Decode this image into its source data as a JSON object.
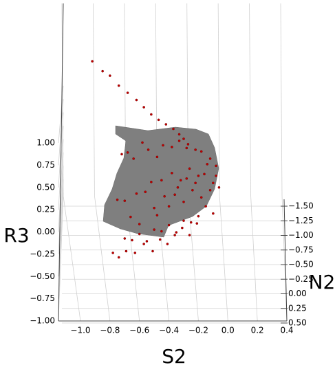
{
  "chart_data": {
    "type": "scatter3d",
    "xlabel": "S2",
    "ylabel": "N2",
    "zlabel": "R3",
    "xlim": [
      -1.0,
      0.4
    ],
    "xticks": [
      {
        "value": -1.0,
        "label": "−1.0"
      },
      {
        "value": -0.8,
        "label": "−0.8"
      },
      {
        "value": -0.6,
        "label": "−0.6"
      },
      {
        "value": -0.4,
        "label": "−0.4"
      },
      {
        "value": -0.2,
        "label": "−0.2"
      },
      {
        "value": 0,
        "label": "0.0"
      },
      0.2,
      0.4
    ],
    "ylim": [
      -1.5,
      0.5
    ],
    "yticks": [
      {
        "value": -1.5,
        "label": "−1.50"
      },
      {
        "value": -1.25,
        "label": "−1.25"
      },
      {
        "value": -1.0,
        "label": "−1.00"
      },
      {
        "value": -0.75,
        "label": "−0.75"
      },
      {
        "value": -0.5,
        "label": "−0.50"
      },
      {
        "value": -0.25,
        "label": "−0.25"
      },
      {
        "value": 0,
        "label": "0.00"
      },
      0.25,
      {
        "value": 0.5,
        "label": "0.50"
      }
    ],
    "zlim": [
      -1.0,
      1.0
    ],
    "zticks": [
      {
        "value": -1.0,
        "label": "−1.00"
      },
      {
        "value": -0.75,
        "label": "−0.75"
      },
      {
        "value": -0.5,
        "label": "−0.50"
      },
      {
        "value": -0.25,
        "label": "−0.25"
      },
      {
        "value": 0,
        "label": "0.00"
      },
      0.25,
      {
        "value": 0.5,
        "label": "0.50"
      },
      0.75,
      {
        "value": 1.0,
        "label": "1.00"
      }
    ],
    "grid": true,
    "series": [
      {
        "color": "#c00000",
        "x": [
          -0.92,
          -0.85,
          -0.8,
          -0.74,
          -0.68,
          -0.62,
          -0.57,
          -0.52,
          -0.47,
          -0.42,
          -0.37,
          -0.33,
          -0.3,
          -0.27,
          -0.75,
          -0.7,
          -0.66,
          -0.62,
          -0.6,
          -0.56,
          -0.52,
          -0.5,
          -0.48,
          -0.45,
          -0.43,
          -0.4,
          -0.38,
          -0.36,
          -0.34,
          -0.32,
          -0.3,
          -0.28,
          -0.26,
          -0.24,
          -0.22,
          -0.2,
          -0.18,
          -0.16,
          -0.14,
          -0.12,
          -0.1,
          -0.08,
          -0.06,
          -0.7,
          -0.65,
          -0.6,
          -0.55,
          -0.5,
          -0.45,
          -0.4,
          -0.35,
          -0.3,
          -0.25,
          -0.2,
          -0.15,
          -0.1,
          -0.72,
          -0.68,
          -0.64,
          -0.58,
          -0.54,
          -0.48,
          -0.44,
          -0.38,
          -0.33,
          -0.28,
          -0.22,
          -0.18,
          -0.12,
          -0.08,
          -0.78,
          -0.74,
          -0.69,
          -0.63,
          -0.57,
          -0.51,
          -0.46,
          -0.41,
          -0.36,
          -0.31,
          -0.26,
          -0.21
        ],
        "y": [
          -1.0,
          -0.9,
          -0.9,
          -0.8,
          -0.75,
          -0.7,
          -0.65,
          -0.6,
          -0.55,
          -0.5,
          -0.45,
          -0.4,
          -0.35,
          -0.3,
          -0.1,
          0.0,
          0.05,
          -0.05,
          0.1,
          0.0,
          -0.1,
          0.05,
          0.1,
          -0.05,
          0.0,
          0.1,
          -0.1,
          0.05,
          0.0,
          -0.05,
          0.1,
          0.0,
          -0.1,
          0.05,
          0.0,
          -0.05,
          0.1,
          0.0,
          -0.1,
          0.05,
          0.0,
          -0.05,
          0.0,
          0.2,
          0.15,
          0.2,
          0.25,
          0.2,
          0.15,
          0.2,
          0.25,
          0.2,
          0.15,
          0.2,
          0.1,
          0.15,
          -0.2,
          -0.15,
          -0.2,
          -0.25,
          -0.2,
          -0.15,
          -0.2,
          -0.25,
          -0.2,
          -0.15,
          -0.2,
          -0.25,
          -0.2,
          -0.15,
          0.3,
          0.3,
          0.35,
          0.3,
          0.3,
          0.35,
          0.3,
          0.3,
          0.3,
          0.25,
          0.3,
          0.25
        ],
        "z": [
          1.3,
          1.25,
          1.2,
          1.15,
          1.1,
          1.05,
          1.0,
          0.95,
          0.92,
          0.9,
          0.88,
          0.85,
          0.83,
          0.8,
          0.3,
          0.35,
          0.2,
          0.4,
          0.15,
          0.45,
          0.5,
          0.3,
          0.25,
          0.55,
          0.4,
          0.35,
          0.6,
          0.45,
          0.5,
          0.55,
          0.4,
          0.6,
          0.65,
          0.5,
          0.55,
          0.6,
          0.45,
          0.65,
          0.7,
          0.5,
          0.55,
          0.6,
          0.5,
          0.05,
          0.0,
          0.1,
          0.05,
          0.15,
          0.1,
          0.2,
          0.15,
          0.25,
          0.2,
          0.3,
          0.35,
          0.3,
          0.75,
          0.8,
          0.7,
          0.85,
          0.8,
          0.75,
          0.85,
          0.8,
          0.9,
          0.85,
          0.8,
          0.75,
          0.7,
          0.65,
          -0.05,
          -0.1,
          0.0,
          -0.05,
          0.05,
          0.0,
          0.1,
          0.05,
          0.15,
          0.2,
          0.15,
          0.25
        ]
      }
    ]
  }
}
